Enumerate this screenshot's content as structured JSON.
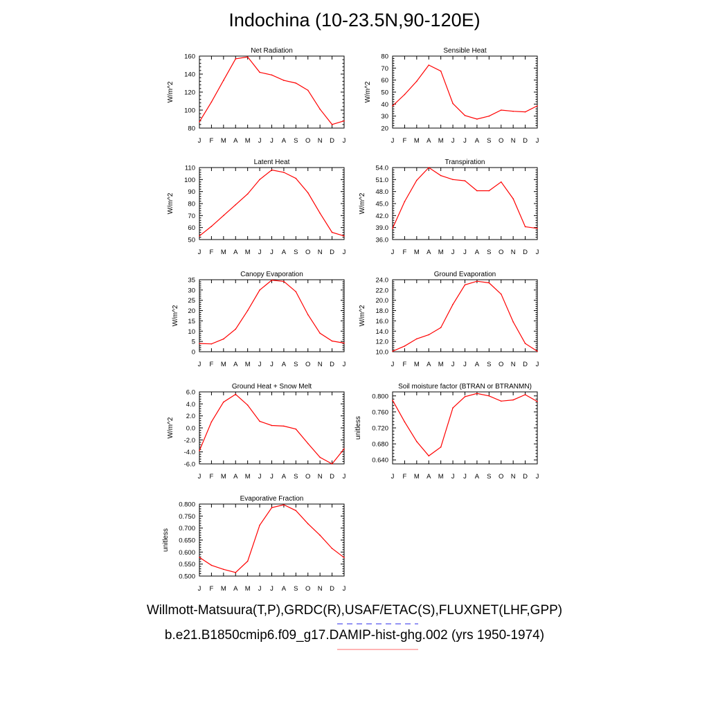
{
  "page": {
    "title": "Indochina (10-23.5N,90-120E)",
    "footer_line1": "Willmott-Matsuura(T,P),GRDC(R),USAF/ETAC(S),FLUXNET(LHF,GPP)",
    "footer_line2": "b.e21.B1850cmip6.f09_g17.DAMIP-hist-ghg.002 (yrs 1950-1974)",
    "line_color": "#ff0000",
    "dash_color": "#5555ee",
    "underline_color": "#ff8888"
  },
  "chart_data": [
    {
      "type": "line",
      "title": "Net Radiation",
      "ylabel": "W/m^2",
      "xlabel": "",
      "categories": [
        "J",
        "F",
        "M",
        "A",
        "M",
        "J",
        "J",
        "A",
        "S",
        "O",
        "N",
        "D",
        "J"
      ],
      "values": [
        87,
        109,
        133,
        157,
        159,
        142,
        139,
        133,
        130,
        122,
        101,
        84,
        88
      ],
      "ylim": [
        80,
        160
      ],
      "yticks": [
        80,
        100,
        120,
        140,
        160
      ],
      "ytick_labels": [
        "80",
        "100",
        "120",
        "140",
        "160"
      ]
    },
    {
      "type": "line",
      "title": "Sensible Heat",
      "ylabel": "W/m^2",
      "xlabel": "",
      "categories": [
        "J",
        "F",
        "M",
        "A",
        "M",
        "J",
        "J",
        "A",
        "S",
        "O",
        "N",
        "D",
        "J"
      ],
      "values": [
        38.5,
        48,
        59,
        72.5,
        67.5,
        40.5,
        30.5,
        27.5,
        30,
        35,
        34,
        33.5,
        38.5
      ],
      "ylim": [
        20,
        80
      ],
      "yticks": [
        20,
        30,
        40,
        50,
        60,
        70,
        80
      ],
      "ytick_labels": [
        "20",
        "30",
        "40",
        "50",
        "60",
        "70",
        "80"
      ]
    },
    {
      "type": "line",
      "title": "Latent Heat",
      "ylabel": "W/m^2",
      "xlabel": "",
      "categories": [
        "J",
        "F",
        "M",
        "A",
        "M",
        "J",
        "J",
        "A",
        "S",
        "O",
        "N",
        "D",
        "J"
      ],
      "values": [
        53,
        61,
        70,
        79,
        88,
        100,
        108,
        106,
        101,
        89,
        72,
        56,
        53
      ],
      "ylim": [
        50,
        110
      ],
      "yticks": [
        50,
        60,
        70,
        80,
        90,
        100,
        110
      ],
      "ytick_labels": [
        "50",
        "60",
        "70",
        "80",
        "90",
        "100",
        "110"
      ]
    },
    {
      "type": "line",
      "title": "Transpiration",
      "ylabel": "W/m^2",
      "xlabel": "",
      "categories": [
        "J",
        "F",
        "M",
        "A",
        "M",
        "J",
        "J",
        "A",
        "S",
        "O",
        "N",
        "D",
        "J"
      ],
      "values": [
        38.8,
        45.5,
        50.8,
        54.0,
        52.0,
        51.0,
        50.7,
        48.2,
        48.2,
        50.4,
        46.2,
        39.2,
        38.8
      ],
      "ylim": [
        36,
        54
      ],
      "yticks": [
        36,
        39,
        42,
        45,
        48,
        51,
        54
      ],
      "ytick_labels": [
        "36.0",
        "39.0",
        "42.0",
        "45.0",
        "48.0",
        "51.0",
        "54.0"
      ]
    },
    {
      "type": "line",
      "title": "Canopy Evaporation",
      "ylabel": "W/m^2",
      "xlabel": "",
      "categories": [
        "J",
        "F",
        "M",
        "A",
        "M",
        "J",
        "J",
        "A",
        "S",
        "O",
        "N",
        "D",
        "J"
      ],
      "values": [
        4,
        3.8,
        6.2,
        11,
        20,
        30,
        34.8,
        34.2,
        29.2,
        18,
        9,
        5.2,
        4.2
      ],
      "ylim": [
        0,
        35
      ],
      "yticks": [
        0,
        5,
        10,
        15,
        20,
        25,
        30,
        35
      ],
      "ytick_labels": [
        "0",
        "5",
        "10",
        "15",
        "20",
        "25",
        "30",
        "35"
      ]
    },
    {
      "type": "line",
      "title": "Ground Evaporation",
      "ylabel": "W/m^2",
      "xlabel": "",
      "categories": [
        "J",
        "F",
        "M",
        "A",
        "M",
        "J",
        "J",
        "A",
        "S",
        "O",
        "N",
        "D",
        "J"
      ],
      "values": [
        10.1,
        11.1,
        12.5,
        13.3,
        14.7,
        19.2,
        23.0,
        23.7,
        23.4,
        21.2,
        15.8,
        11.6,
        10.1
      ],
      "ylim": [
        10,
        24
      ],
      "yticks": [
        10,
        12,
        14,
        16,
        18,
        20,
        22,
        24
      ],
      "ytick_labels": [
        "10.0",
        "12.0",
        "14.0",
        "16.0",
        "18.0",
        "20.0",
        "22.0",
        "24.0"
      ]
    },
    {
      "type": "line",
      "title": "Ground Heat + Snow Melt",
      "ylabel": "W/m^2",
      "xlabel": "",
      "categories": [
        "J",
        "F",
        "M",
        "A",
        "M",
        "J",
        "J",
        "A",
        "S",
        "O",
        "N",
        "D",
        "J"
      ],
      "values": [
        -3.8,
        1.0,
        4.3,
        5.6,
        3.8,
        1.1,
        0.4,
        0.3,
        -0.2,
        -2.6,
        -4.9,
        -6.0,
        -3.5
      ],
      "ylim": [
        -6,
        6
      ],
      "yticks": [
        -6,
        -4,
        -2,
        0,
        2,
        4,
        6
      ],
      "ytick_labels": [
        "-6.0",
        "-4.0",
        "-2.0",
        "0.0",
        "2.0",
        "4.0",
        "6.0"
      ]
    },
    {
      "type": "line",
      "title": "Soil moisture factor (BTRAN or BTRANMN)",
      "ylabel": "unitless",
      "xlabel": "",
      "categories": [
        "J",
        "F",
        "M",
        "A",
        "M",
        "J",
        "J",
        "A",
        "S",
        "O",
        "N",
        "D",
        "J"
      ],
      "values": [
        0.789,
        0.735,
        0.686,
        0.65,
        0.672,
        0.77,
        0.798,
        0.806,
        0.8,
        0.787,
        0.79,
        0.803,
        0.786
      ],
      "ylim": [
        0.63,
        0.81
      ],
      "yticks": [
        0.64,
        0.68,
        0.72,
        0.76,
        0.8
      ],
      "ytick_labels": [
        "0.640",
        "0.680",
        "0.720",
        "0.760",
        "0.800"
      ]
    },
    {
      "type": "line",
      "title": "Evaporative Fraction",
      "ylabel": "unitless",
      "xlabel": "",
      "categories": [
        "J",
        "F",
        "M",
        "A",
        "M",
        "J",
        "J",
        "A",
        "S",
        "O",
        "N",
        "D",
        "J"
      ],
      "values": [
        0.578,
        0.545,
        0.528,
        0.515,
        0.562,
        0.712,
        0.785,
        0.797,
        0.773,
        0.718,
        0.67,
        0.615,
        0.577
      ],
      "ylim": [
        0.5,
        0.8
      ],
      "yticks": [
        0.5,
        0.55,
        0.6,
        0.65,
        0.7,
        0.75,
        0.8
      ],
      "ytick_labels": [
        "0.500",
        "0.550",
        "0.600",
        "0.650",
        "0.700",
        "0.750",
        "0.800"
      ]
    }
  ]
}
